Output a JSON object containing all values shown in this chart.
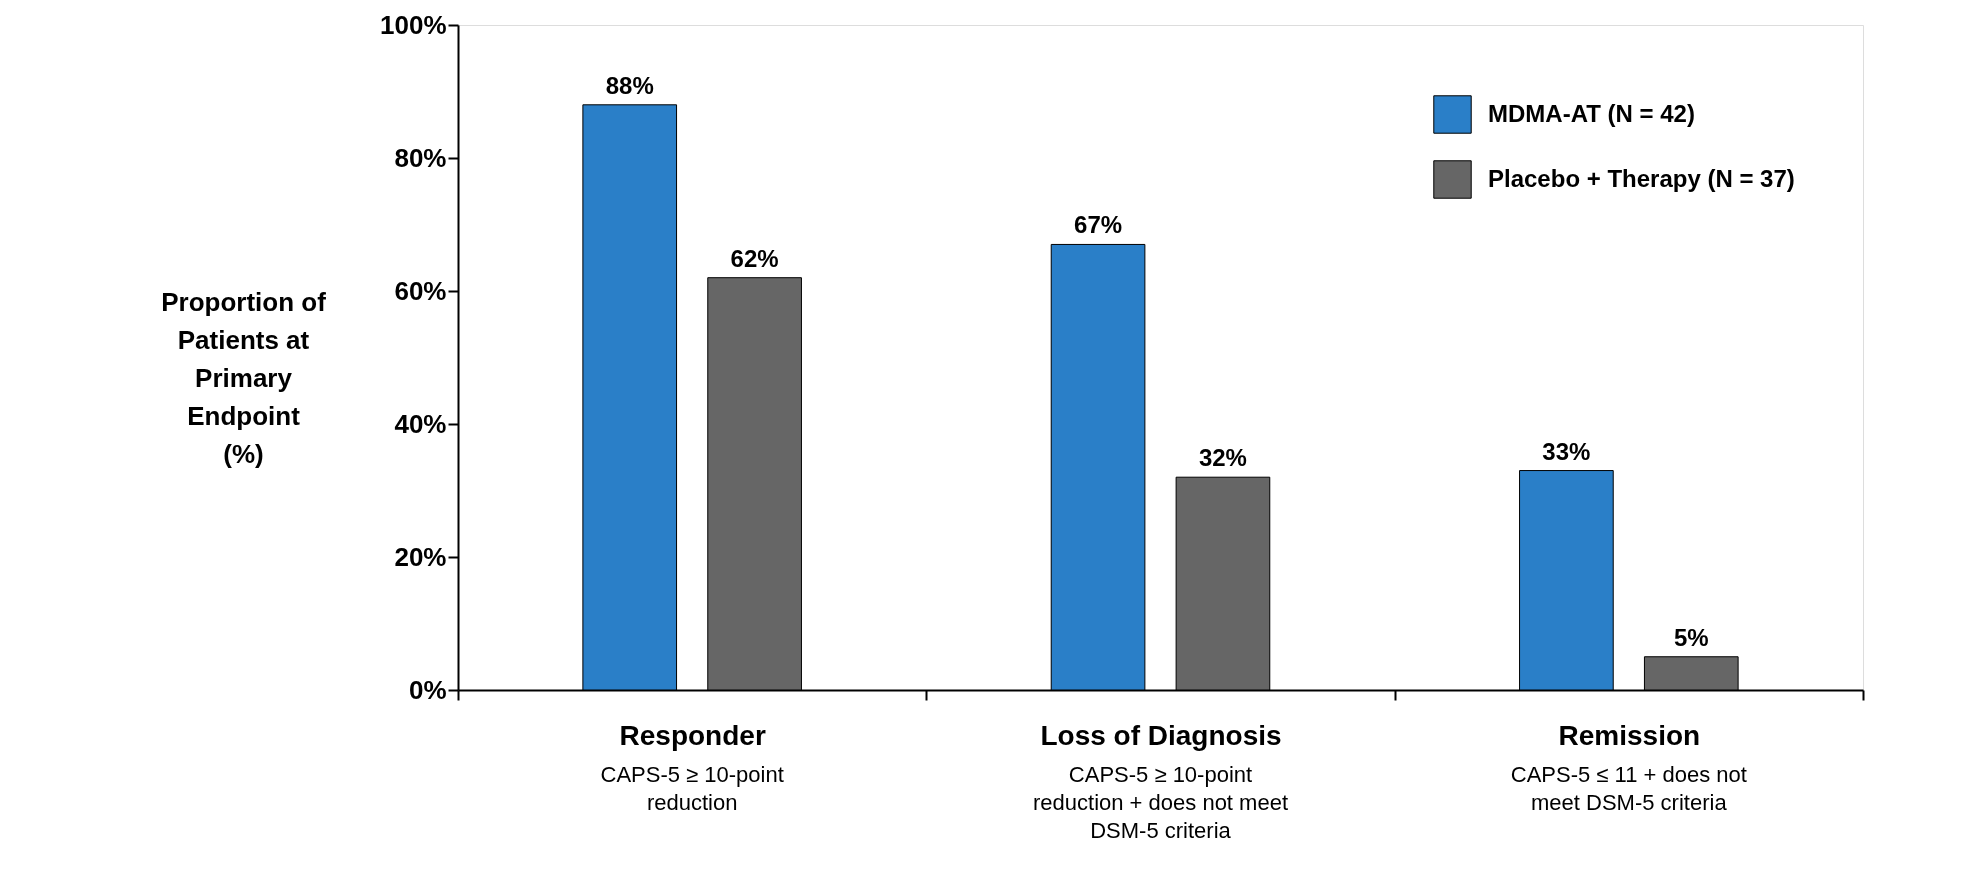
{
  "chart_data": {
    "type": "bar",
    "ylabel": "Proportion of\nPatients at\nPrimary\nEndpoint\n(%)",
    "categories": [
      "Responder",
      "Loss of Diagnosis",
      "Remission"
    ],
    "series": [
      {
        "name": "MDMA-AT (N = 42)",
        "color": "#2a7fc8",
        "values": [
          88,
          67,
          33
        ]
      },
      {
        "name": "Placebo + Therapy (N = 37)",
        "color": "#666666",
        "values": [
          62,
          32,
          5
        ]
      }
    ],
    "ylim": [
      0,
      100
    ],
    "yticks": [
      {
        "value": 0,
        "label": "0%"
      },
      {
        "value": 20,
        "label": "20%"
      },
      {
        "value": 40,
        "label": "40%"
      },
      {
        "value": 60,
        "label": "60%"
      },
      {
        "value": 80,
        "label": "80%"
      },
      {
        "value": 100,
        "label": "100%"
      }
    ],
    "value_labels": [
      [
        "88%",
        "67%",
        "33%"
      ],
      [
        "62%",
        "32%",
        "5%"
      ]
    ],
    "annotations": [
      "CAPS-5 ≥ 10-point\nreduction",
      "CAPS-5 ≥ 10-point\nreduction + does not meet\nDSM-5 criteria",
      "CAPS-5 ≤ 11 + does not\nmeet DSM-5 criteria"
    ],
    "legend": "top right",
    "grid": false
  }
}
